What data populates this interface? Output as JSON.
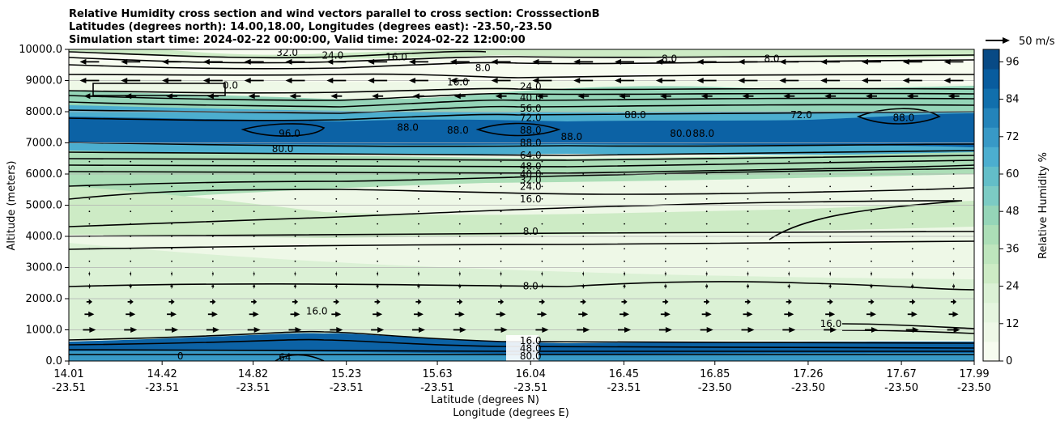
{
  "chart_data": {
    "type": "contour",
    "title": [
      "Relative Humidity cross section and wind vectors parallel to cross section: CrosssectionB",
      "Latitudes (degrees north): 14.00,18.00, Longitudes (degrees east): -23.50,-23.50",
      "Simulation start time: 2024-02-22 00:00:00, Valid time: 2024-02-22 12:00:00"
    ],
    "ylabel": "Altitude (meters)",
    "xlabel": "Latitude (degrees N)",
    "xlabel2": "Longitude (degrees E)",
    "ylim": [
      0,
      10000
    ],
    "yticks": [
      "0.0",
      "1000.0",
      "2000.0",
      "3000.0",
      "4000.0",
      "5000.0",
      "6000.0",
      "7000.0",
      "8000.0",
      "9000.0",
      "10000.0"
    ],
    "xlim": [
      14.01,
      17.99
    ],
    "xticks": [
      {
        "lat": "14.01",
        "lon": "-23.51",
        "pos": 14.01
      },
      {
        "lat": "14.42",
        "lon": "-23.51",
        "pos": 14.42
      },
      {
        "lat": "14.82",
        "lon": "-23.51",
        "pos": 14.82
      },
      {
        "lat": "15.23",
        "lon": "-23.51",
        "pos": 15.23
      },
      {
        "lat": "15.63",
        "lon": "-23.51",
        "pos": 15.63
      },
      {
        "lat": "16.04",
        "lon": "-23.51",
        "pos": 16.04
      },
      {
        "lat": "16.45",
        "lon": "-23.51",
        "pos": 16.45
      },
      {
        "lat": "16.85",
        "lon": "-23.50",
        "pos": 16.85
      },
      {
        "lat": "17.26",
        "lon": "-23.50",
        "pos": 17.26
      },
      {
        "lat": "17.67",
        "lon": "-23.50",
        "pos": 17.67
      },
      {
        "lat": "17.99",
        "lon": "-23.50",
        "pos": 17.99
      }
    ],
    "colorbar": {
      "label": "Relative Humidity %",
      "min": 0,
      "max": 100,
      "ticks": [
        "0",
        "12",
        "24",
        "36",
        "48",
        "60",
        "72",
        "84",
        "96"
      ],
      "colors": [
        "#f7fcf0",
        "#eef8e7",
        "#e5f5df",
        "#dbf1d5",
        "#cdebc5",
        "#bee5bd",
        "#acdeb7",
        "#95d5b8",
        "#7ccbc4",
        "#63bec8",
        "#4caecf",
        "#3899c6",
        "#2484ba",
        "#116fac",
        "#085c9e",
        "#084a85"
      ]
    },
    "quiver_key": "50 m/s",
    "wind_bands": [
      {
        "alt": 9600,
        "u": -0.6
      },
      {
        "alt": 9000,
        "u": -0.6
      },
      {
        "alt": 8500,
        "u": -0.35
      },
      {
        "alt": 6400,
        "u": 0.04
      },
      {
        "alt": 6000,
        "u": 0.04
      },
      {
        "alt": 5600,
        "u": 0.03
      },
      {
        "alt": 5200,
        "u": 0.03
      },
      {
        "alt": 4800,
        "u": 0.02
      },
      {
        "alt": 4400,
        "u": 0.02
      },
      {
        "alt": 4000,
        "u": 0.02
      },
      {
        "alt": 3600,
        "u": 0.02
      },
      {
        "alt": 3200,
        "u": 0.03
      },
      {
        "alt": 2800,
        "u": 0.05
      },
      {
        "alt": 2400,
        "u": 0.08
      },
      {
        "alt": 1900,
        "u": 0.18
      },
      {
        "alt": 1500,
        "u": 0.3
      },
      {
        "alt": 1000,
        "u": 0.4
      }
    ],
    "contour_labels": [
      {
        "text": "32.0",
        "lat": 14.97,
        "alt": 9900
      },
      {
        "text": "24.0",
        "lat": 15.17,
        "alt": 9800
      },
      {
        "text": "16.0",
        "lat": 15.45,
        "alt": 9750
      },
      {
        "text": "16.0",
        "lat": 15.72,
        "alt": 8950
      },
      {
        "text": "8.0",
        "lat": 15.83,
        "alt": 9400
      },
      {
        "text": "8.0",
        "lat": 16.65,
        "alt": 9700
      },
      {
        "text": "8.0",
        "lat": 17.1,
        "alt": 9700
      },
      {
        "text": "0.0",
        "lat": 14.72,
        "alt": 8850
      },
      {
        "text": "24.0",
        "lat": 16.04,
        "alt": 8800
      },
      {
        "text": "40.0",
        "lat": 16.04,
        "alt": 8450
      },
      {
        "text": "56.0",
        "lat": 16.04,
        "alt": 8100
      },
      {
        "text": "72.0",
        "lat": 16.04,
        "alt": 7800
      },
      {
        "text": "88.0",
        "lat": 16.04,
        "alt": 7400
      },
      {
        "text": "88.0",
        "lat": 16.04,
        "alt": 7000
      },
      {
        "text": "80.0",
        "lat": 14.95,
        "alt": 6800
      },
      {
        "text": "96.0",
        "lat": 14.98,
        "alt": 7300
      },
      {
        "text": "88.0",
        "lat": 15.5,
        "alt": 7500
      },
      {
        "text": "88.0",
        "lat": 15.72,
        "alt": 7400
      },
      {
        "text": "88.0",
        "lat": 16.22,
        "alt": 7200
      },
      {
        "text": "88.0",
        "lat": 16.5,
        "alt": 7900
      },
      {
        "text": "80.0",
        "lat": 16.7,
        "alt": 7300
      },
      {
        "text": "88.0",
        "lat": 16.8,
        "alt": 7300
      },
      {
        "text": "72.0",
        "lat": 17.23,
        "alt": 7900
      },
      {
        "text": "88.0",
        "lat": 17.68,
        "alt": 7800
      },
      {
        "text": "64.0",
        "lat": 16.04,
        "alt": 6600
      },
      {
        "text": "48.0",
        "lat": 16.04,
        "alt": 6250
      },
      {
        "text": "40.0",
        "lat": 16.04,
        "alt": 6000
      },
      {
        "text": "32.0",
        "lat": 16.04,
        "alt": 5800
      },
      {
        "text": "24.0",
        "lat": 16.04,
        "alt": 5600
      },
      {
        "text": "16.0",
        "lat": 16.04,
        "alt": 5200
      },
      {
        "text": "8.0",
        "lat": 16.04,
        "alt": 4150
      },
      {
        "text": "8.0",
        "lat": 16.04,
        "alt": 2400
      },
      {
        "text": "16.0",
        "lat": 15.1,
        "alt": 1600
      },
      {
        "text": "16.0",
        "lat": 17.36,
        "alt": 1200
      },
      {
        "text": "16.0",
        "lat": 16.04,
        "alt": 650
      },
      {
        "text": "48.0",
        "lat": 16.04,
        "alt": 400
      },
      {
        "text": "80.0",
        "lat": 16.04,
        "alt": 150
      },
      {
        "text": "64",
        "lat": 14.96,
        "alt": 120
      },
      {
        "text": "0",
        "lat": 14.5,
        "alt": 150
      }
    ]
  }
}
